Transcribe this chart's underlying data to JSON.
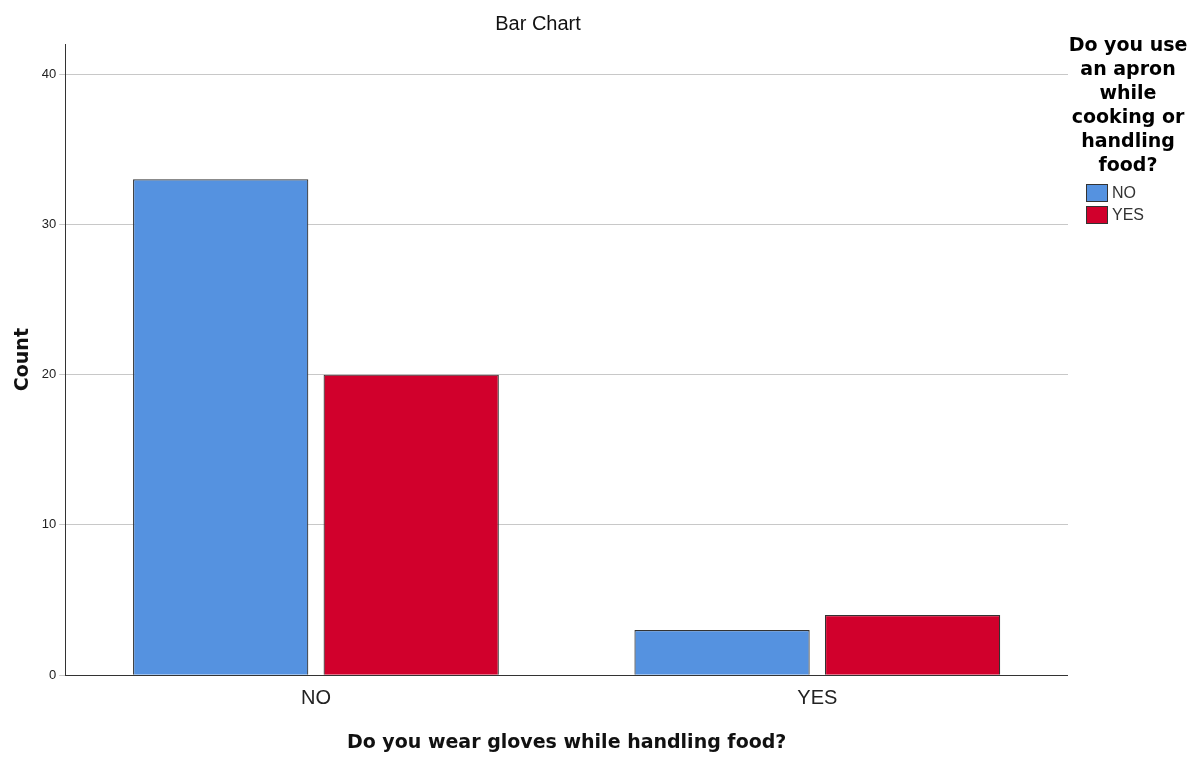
{
  "chart_data": {
    "type": "bar",
    "title": "Bar Chart",
    "xlabel": "Do you wear gloves while handling food?",
    "ylabel": "Count",
    "legend_title": "Do you use an apron while cooking or handling food?",
    "categories": [
      "NO",
      "YES"
    ],
    "series": [
      {
        "name": "NO",
        "color": "#5592e0",
        "values": [
          33,
          3
        ]
      },
      {
        "name": "YES",
        "color": "#d1002c",
        "values": [
          20,
          4
        ]
      }
    ],
    "ylim": [
      0,
      42
    ],
    "yticks": [
      0,
      10,
      20,
      30,
      40
    ],
    "grid": "y",
    "legend": "right"
  }
}
